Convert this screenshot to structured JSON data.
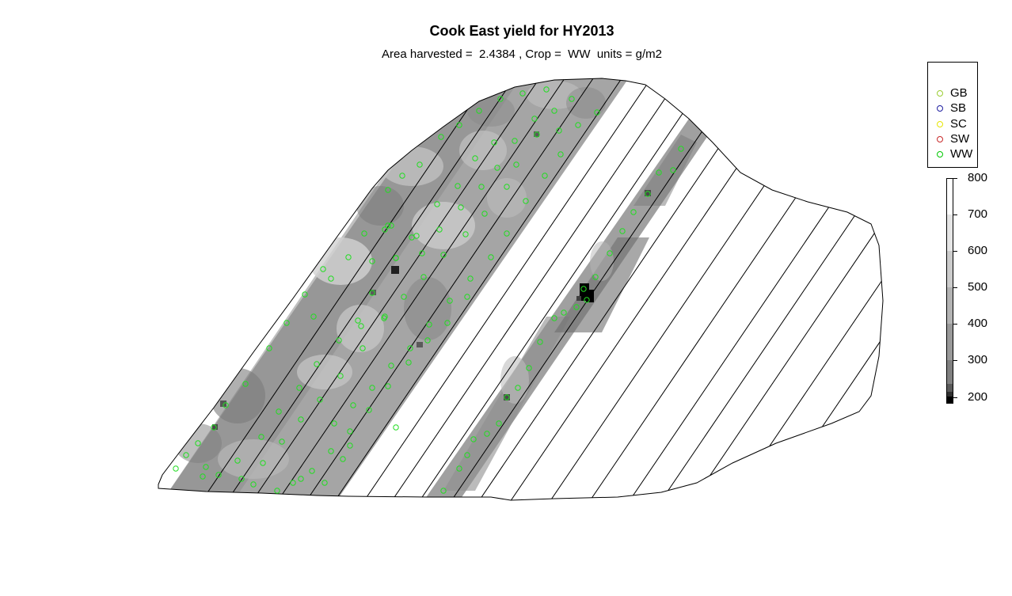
{
  "title": "Cook East yield for HY2013",
  "subtitle": "Area harvested =  2.4384 , Crop =  WW  units = g/m2",
  "legend": [
    {
      "label": "GB",
      "color": "#9acd32"
    },
    {
      "label": "SB",
      "color": "#1e1ea0"
    },
    {
      "label": "SC",
      "color": "#e6e600"
    },
    {
      "label": "SW",
      "color": "#c82828"
    },
    {
      "label": "WW",
      "color": "#00c800"
    }
  ],
  "scale": {
    "ticks": [
      "800",
      "700",
      "600",
      "500",
      "400",
      "300",
      "200"
    ],
    "colors": [
      "#ffffff",
      "#e6e6e6",
      "#cccccc",
      "#b3b3b3",
      "#999999",
      "#808080",
      "#5a5a5a",
      "#303030",
      "#000000"
    ]
  },
  "colors": {
    "point_marker": "#22dd22",
    "field_outline": "#000000"
  }
}
